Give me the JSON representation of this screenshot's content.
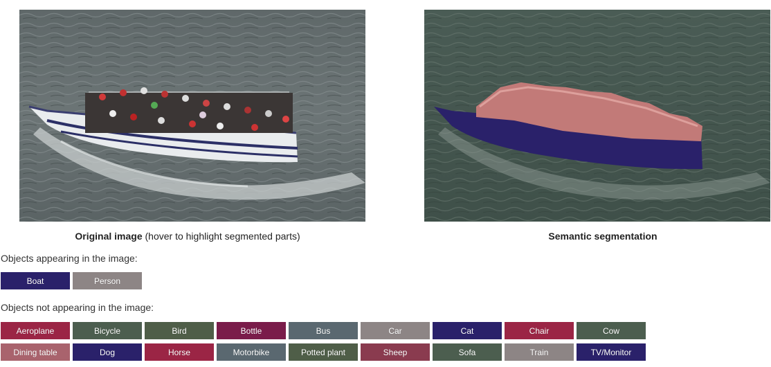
{
  "images": {
    "original": {
      "label_bold": "Original image",
      "label_note": "(hover to highlight segmented parts)"
    },
    "segmentation": {
      "label_bold": "Semantic segmentation"
    }
  },
  "present_section": {
    "title": "Objects appearing in the image:",
    "items": [
      {
        "label": "Boat",
        "color": "#2a216a"
      },
      {
        "label": "Person",
        "color": "#8d8585"
      }
    ]
  },
  "absent_section": {
    "title": "Objects not appearing in the image:",
    "rows": [
      [
        {
          "label": "Aeroplane",
          "color": "#9b2545"
        },
        {
          "label": "Bicycle",
          "color": "#4c5e4f"
        },
        {
          "label": "Bird",
          "color": "#4f5e48"
        },
        {
          "label": "Bottle",
          "color": "#7a1c4a"
        },
        {
          "label": "Bus",
          "color": "#5a6870"
        },
        {
          "label": "Car",
          "color": "#8d8585"
        },
        {
          "label": "Cat",
          "color": "#2a216a"
        },
        {
          "label": "Chair",
          "color": "#9b2545"
        },
        {
          "label": "Cow",
          "color": "#4c5e4f"
        }
      ],
      [
        {
          "label": "Dining table",
          "color": "#a9636d"
        },
        {
          "label": "Dog",
          "color": "#2a216a"
        },
        {
          "label": "Horse",
          "color": "#9b2545"
        },
        {
          "label": "Motorbike",
          "color": "#5a6870"
        },
        {
          "label": "Potted plant",
          "color": "#4f5e48"
        },
        {
          "label": "Sheep",
          "color": "#8a3b4f"
        },
        {
          "label": "Sofa",
          "color": "#4c5e4f"
        },
        {
          "label": "Train",
          "color": "#8d8585"
        },
        {
          "label": "TV/Monitor",
          "color": "#2a216a"
        }
      ]
    ]
  }
}
